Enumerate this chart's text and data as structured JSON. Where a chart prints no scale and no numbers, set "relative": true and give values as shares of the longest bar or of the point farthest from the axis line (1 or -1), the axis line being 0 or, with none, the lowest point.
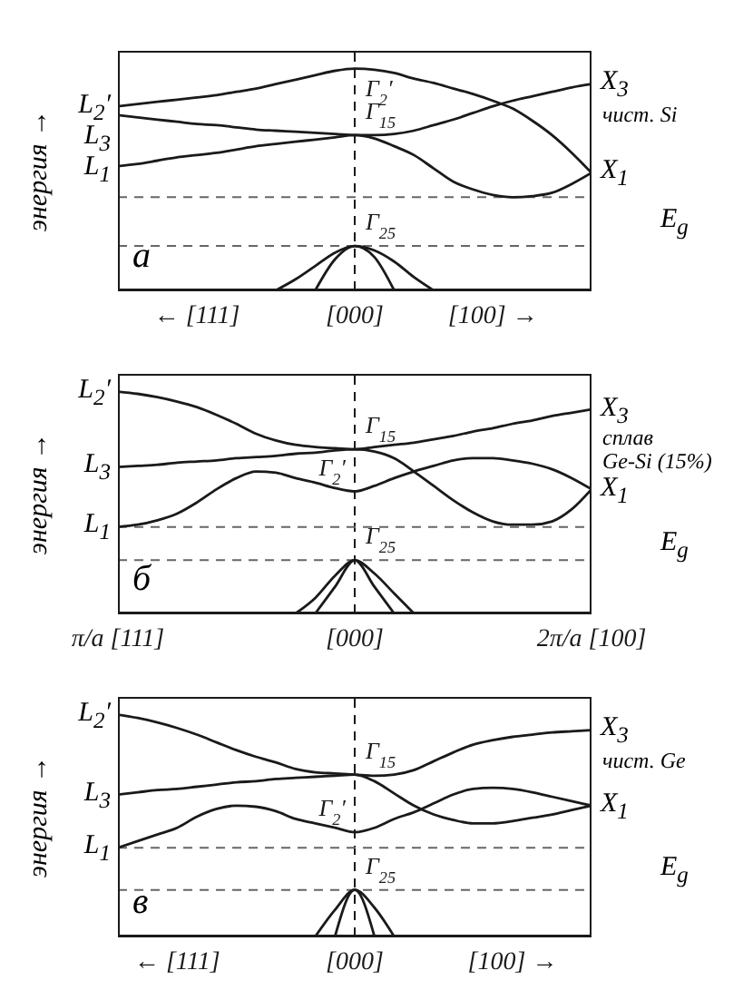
{
  "chart_data": [
    {
      "type": "line",
      "title": "а",
      "subtitle": "чист. Si",
      "ylabel": "энергия →",
      "relative": true,
      "categories": [
        null,
        null,
        null,
        null,
        "← [111]",
        null,
        null,
        null,
        null,
        null,
        null,
        null,
        "[000]",
        null,
        null,
        null,
        null,
        null,
        null,
        "[100] →",
        null,
        null,
        null,
        null,
        null
      ],
      "marker": "none",
      "line_style": "solid",
      "series": [
        {
          "color": "#1a1a1a",
          "values": [
            0.83,
            0.84,
            0.85,
            0.86,
            0.87,
            0.88,
            0.895,
            0.91,
            0.93,
            0.95,
            0.97,
            0.99,
            1,
            0.995,
            0.98,
            0.955,
            0.935,
            0.91,
            0.885,
            0.855,
            0.82,
            0.765,
            0.7,
            0.62,
            0.53
          ]
        },
        {
          "color": "#1a1a1a",
          "values": [
            0.79,
            0.78,
            0.77,
            0.76,
            0.75,
            0.745,
            0.735,
            0.725,
            0.72,
            0.715,
            0.71,
            0.705,
            0.7,
            0.7,
            0.705,
            0.72,
            0.745,
            0.77,
            0.8,
            0.83,
            0.855,
            0.875,
            0.895,
            0.915,
            0.93
          ]
        },
        {
          "color": "#1a1a1a",
          "values": [
            0.56,
            0.57,
            0.585,
            0.6,
            0.61,
            0.62,
            0.635,
            0.65,
            0.66,
            0.67,
            0.68,
            0.69,
            0.7,
            0.685,
            0.65,
            0.61,
            0.55,
            0.49,
            0.455,
            0.43,
            0.42,
            0.425,
            0.44,
            0.48,
            0.53
          ]
        },
        {
          "color": "#1a1a1a",
          "values": [
            null,
            null,
            null,
            null,
            null,
            null,
            null,
            null,
            0,
            0.05,
            0.11,
            0.17,
            0.2,
            0.18,
            0.13,
            0.06,
            0,
            null,
            null,
            null,
            null,
            null,
            null,
            null,
            null
          ]
        },
        {
          "color": "#1a1a1a",
          "values": [
            null,
            null,
            null,
            null,
            null,
            null,
            null,
            null,
            null,
            null,
            0,
            0.14,
            0.2,
            0.15,
            0,
            null,
            null,
            null,
            null,
            null,
            null,
            null,
            null,
            null,
            null
          ]
        }
      ],
      "ref_lines": [
        {
          "axis": "x",
          "value": "[000]",
          "line_style": "dashed",
          "color": "#1a1a1a"
        },
        {
          "axis": "y",
          "value": 0.42,
          "line_style": "dashed",
          "color": "#666666"
        },
        {
          "axis": "y",
          "value": 0.2,
          "line_style": "dashed",
          "color": "#666666"
        }
      ],
      "annotations": [
        "L$_{2}$′",
        "L$_{3}$",
        "L$_{1}$",
        "X$_{3}$",
        "X$_{1}$",
        {
          "text": "Γ$_{2}$′",
          "x": "[000]",
          "y": 1
        },
        {
          "text": "Γ$_{15}$",
          "x": "[000]",
          "y": 0.7
        },
        {
          "text": "Γ$_{25}$",
          "x": "[000]",
          "y": 0.2
        },
        "E$_{g}$"
      ]
    },
    {
      "type": "line",
      "title": "б",
      "subtitle": "сплав\nGe-Si (15%)",
      "ylabel": "энергия →",
      "relative": true,
      "categories": [
        "π/a [111]",
        null,
        null,
        null,
        null,
        null,
        null,
        null,
        null,
        null,
        null,
        null,
        "[000]",
        null,
        null,
        null,
        null,
        null,
        null,
        null,
        null,
        null,
        null,
        null,
        "2π/a [100]"
      ],
      "marker": "none",
      "line_style": "solid",
      "series": [
        {
          "color": "#1a1a1a",
          "values": [
            1,
            0.99,
            0.975,
            0.955,
            0.93,
            0.895,
            0.855,
            0.81,
            0.78,
            0.76,
            0.75,
            0.745,
            0.74,
            0.75,
            0.76,
            0.77,
            0.785,
            0.8,
            0.82,
            0.835,
            0.855,
            0.87,
            0.89,
            0.905,
            0.92
          ]
        },
        {
          "color": "#1a1a1a",
          "values": [
            0.66,
            0.665,
            0.67,
            0.68,
            0.685,
            0.69,
            0.7,
            0.705,
            0.71,
            0.72,
            0.725,
            0.735,
            0.74,
            0.73,
            0.7,
            0.64,
            0.575,
            0.51,
            0.455,
            0.415,
            0.4,
            0.4,
            0.415,
            0.47,
            0.56
          ]
        },
        {
          "color": "#1a1a1a",
          "values": [
            0.39,
            0.4,
            0.42,
            0.45,
            0.5,
            0.56,
            0.61,
            0.64,
            0.635,
            0.61,
            0.59,
            0.565,
            0.55,
            0.575,
            0.61,
            0.64,
            0.665,
            0.69,
            0.7,
            0.7,
            0.69,
            0.675,
            0.65,
            0.61,
            0.56
          ]
        },
        {
          "color": "#1a1a1a",
          "values": [
            null,
            null,
            null,
            null,
            null,
            null,
            null,
            null,
            null,
            0,
            0.07,
            0.17,
            0.24,
            0.18,
            0.09,
            0,
            null,
            null,
            null,
            null,
            null,
            null,
            null,
            null,
            null
          ]
        },
        {
          "color": "#1a1a1a",
          "values": [
            null,
            null,
            null,
            null,
            null,
            null,
            null,
            null,
            null,
            null,
            0,
            0.12,
            0.24,
            0.12,
            0,
            null,
            null,
            null,
            null,
            null,
            null,
            null,
            null,
            null,
            null
          ]
        }
      ],
      "ref_lines": [
        {
          "axis": "x",
          "value": "[000]",
          "line_style": "dashed",
          "color": "#1a1a1a"
        },
        {
          "axis": "y",
          "value": 0.39,
          "line_style": "dashed",
          "color": "#666666"
        },
        {
          "axis": "y",
          "value": 0.24,
          "line_style": "dashed",
          "color": "#666666"
        }
      ],
      "annotations": [
        "L$_{2}$′",
        "L$_{3}$",
        "L$_{1}$",
        "X$_{3}$",
        "X$_{1}$",
        {
          "text": "Γ$_{15}$",
          "x": "[000]",
          "y": 0.74
        },
        {
          "text": "Γ$_{2}$′",
          "x": "[000]",
          "y": 0.55
        },
        {
          "text": "Γ$_{25}$",
          "x": "[000]",
          "y": 0.24
        },
        "E$_{g}$"
      ]
    },
    {
      "type": "line",
      "title": "в",
      "subtitle": "чист. Ge",
      "ylabel": "энергия →",
      "relative": true,
      "categories": [
        null,
        null,
        null,
        "← [111]",
        null,
        null,
        null,
        null,
        null,
        null,
        null,
        null,
        "[000]",
        null,
        null,
        null,
        null,
        null,
        null,
        null,
        "[100] →",
        null,
        null,
        null,
        null
      ],
      "marker": "none",
      "line_style": "solid",
      "series": [
        {
          "color": "#1a1a1a",
          "values": [
            1,
            0.985,
            0.965,
            0.94,
            0.91,
            0.875,
            0.84,
            0.81,
            0.785,
            0.755,
            0.74,
            0.735,
            0.73,
            0.725,
            0.73,
            0.75,
            0.79,
            0.83,
            0.865,
            0.885,
            0.9,
            0.91,
            0.92,
            0.925,
            0.93
          ]
        },
        {
          "color": "#1a1a1a",
          "values": [
            0.64,
            0.65,
            0.66,
            0.665,
            0.675,
            0.685,
            0.695,
            0.7,
            0.71,
            0.715,
            0.72,
            0.725,
            0.73,
            0.7,
            0.645,
            0.59,
            0.55,
            0.525,
            0.51,
            0.51,
            0.52,
            0.535,
            0.55,
            0.57,
            0.59
          ]
        },
        {
          "color": "#1a1a1a",
          "values": [
            0.4,
            0.43,
            0.46,
            0.49,
            0.54,
            0.575,
            0.59,
            0.585,
            0.565,
            0.53,
            0.51,
            0.49,
            0.47,
            0.49,
            0.53,
            0.56,
            0.6,
            0.64,
            0.665,
            0.67,
            0.665,
            0.65,
            0.63,
            0.61,
            0.59
          ]
        },
        {
          "color": "#1a1a1a",
          "values": [
            null,
            null,
            null,
            null,
            null,
            null,
            null,
            null,
            null,
            null,
            0,
            0.12,
            0.21,
            0.13,
            0,
            null,
            null,
            null,
            null,
            null,
            null,
            null,
            null,
            null,
            null
          ]
        },
        {
          "color": "#1a1a1a",
          "values": [
            null,
            null,
            null,
            null,
            null,
            null,
            null,
            null,
            null,
            null,
            null,
            0,
            0.21,
            0,
            null,
            null,
            null,
            null,
            null,
            null,
            null,
            null,
            null,
            null,
            null
          ]
        }
      ],
      "ref_lines": [
        {
          "axis": "x",
          "value": "[000]",
          "line_style": "dashed",
          "color": "#1a1a1a"
        },
        {
          "axis": "y",
          "value": 0.4,
          "line_style": "dashed",
          "color": "#666666"
        },
        {
          "axis": "y",
          "value": 0.21,
          "line_style": "dashed",
          "color": "#666666"
        }
      ],
      "annotations": [
        "L$_{2}$′",
        "L$_{3}$",
        "L$_{1}$",
        "X$_{3}$",
        "X$_{1}$",
        {
          "text": "Γ$_{15}$",
          "x": "[000]",
          "y": 0.73
        },
        {
          "text": "Γ$_{2}$′",
          "x": "[000]",
          "y": 0.47
        },
        {
          "text": "Γ$_{25}$",
          "x": "[000]",
          "y": 0.21
        },
        "E$_{g}$"
      ]
    }
  ]
}
